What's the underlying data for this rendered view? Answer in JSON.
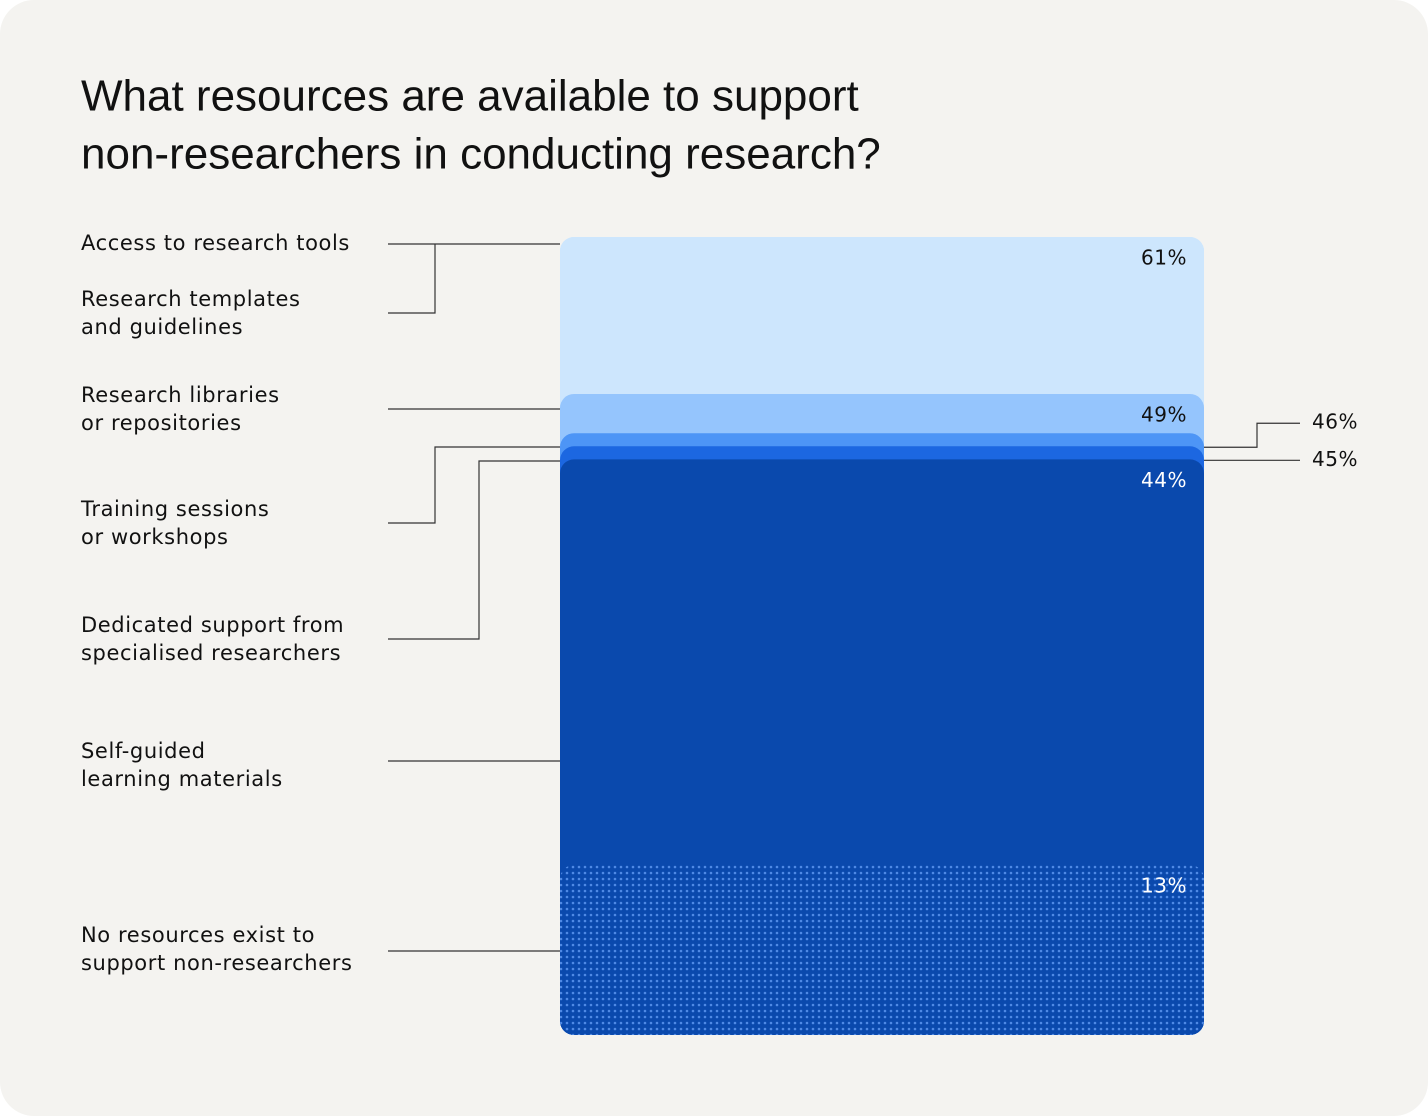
{
  "chart_data": {
    "type": "overlapping-bar",
    "title": [
      "What resources are available to support",
      "non-researchers in conducting research?"
    ],
    "categories": [
      [
        "Access to research tools"
      ],
      [
        "Research templates",
        "and guidelines"
      ],
      [
        "Research libraries",
        "or repositories"
      ],
      [
        "Training sessions",
        "or workshops"
      ],
      [
        "Dedicated support from",
        "specialised researchers"
      ],
      [
        "Self-guided",
        "learning materials"
      ],
      [
        "No resources exist to",
        "support non-researchers"
      ]
    ],
    "values": [
      61,
      61,
      49,
      46,
      45,
      44,
      13
    ],
    "value_labels": [
      "61%",
      null,
      "49%",
      "46%",
      "45%",
      "44%",
      "13%"
    ],
    "colors": [
      "#cde6fd",
      "#cde6fd",
      "#95c5fd",
      "#4d95f6",
      "#1c67e1",
      "#0a49ad",
      "#0a49ad"
    ],
    "pattern_dot_color": "#4f8ae6"
  }
}
